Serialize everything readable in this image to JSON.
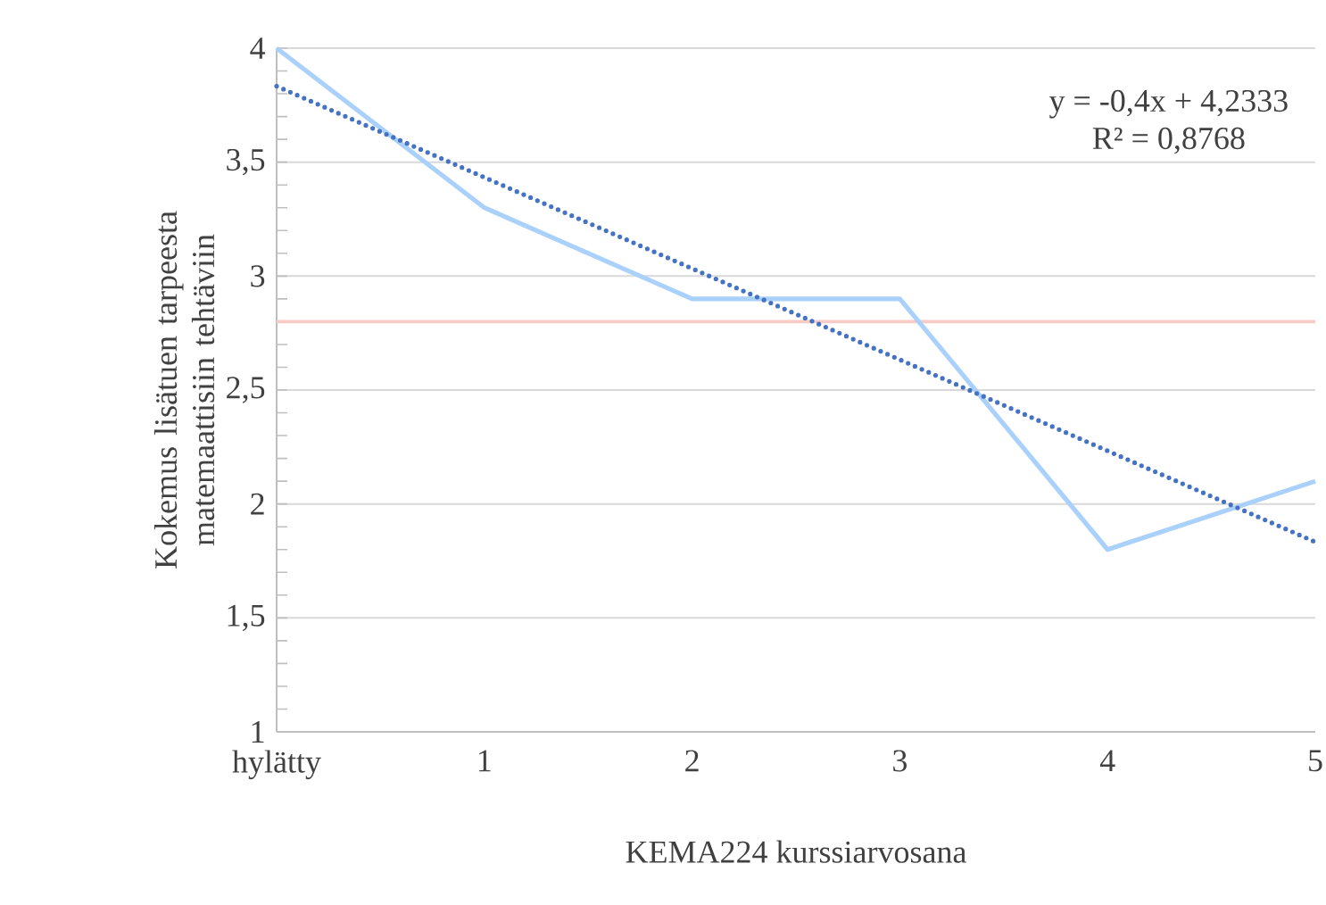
{
  "chart_data": {
    "type": "line",
    "categories": [
      "hylätty",
      "1",
      "2",
      "3",
      "4",
      "5"
    ],
    "series": [
      {
        "color": "#a9d1fb",
        "values": [
          4,
          3.3,
          2.9,
          2.9,
          1.8,
          2.1
        ]
      },
      {
        "type": "line",
        "color": "#4472c4",
        "line_style": "dotted",
        "values": [
          3.8333,
          3.4333,
          3.0333,
          2.6333,
          2.2333,
          1.8333
        ]
      }
    ],
    "ylim": [
      1,
      4
    ],
    "yticks": [
      1,
      {
        "value": 1.5,
        "label": "1,5"
      },
      2,
      {
        "value": 2.5,
        "label": "2,5"
      },
      3,
      {
        "value": 3.5,
        "label": "3,5"
      },
      4
    ],
    "grid": "y",
    "ref_lines": [
      {
        "axis": "y",
        "value": 2.8,
        "color": "#f8cbc6"
      }
    ],
    "xlabel": "KEMA224 kurssiarvosana",
    "ylabel": "Kokemus lisätuen tarpeesta matemaattisiin tehtäviin",
    "annotations": [
      "y = -0,4x + 4,2333",
      "R² = 0,8768"
    ]
  }
}
